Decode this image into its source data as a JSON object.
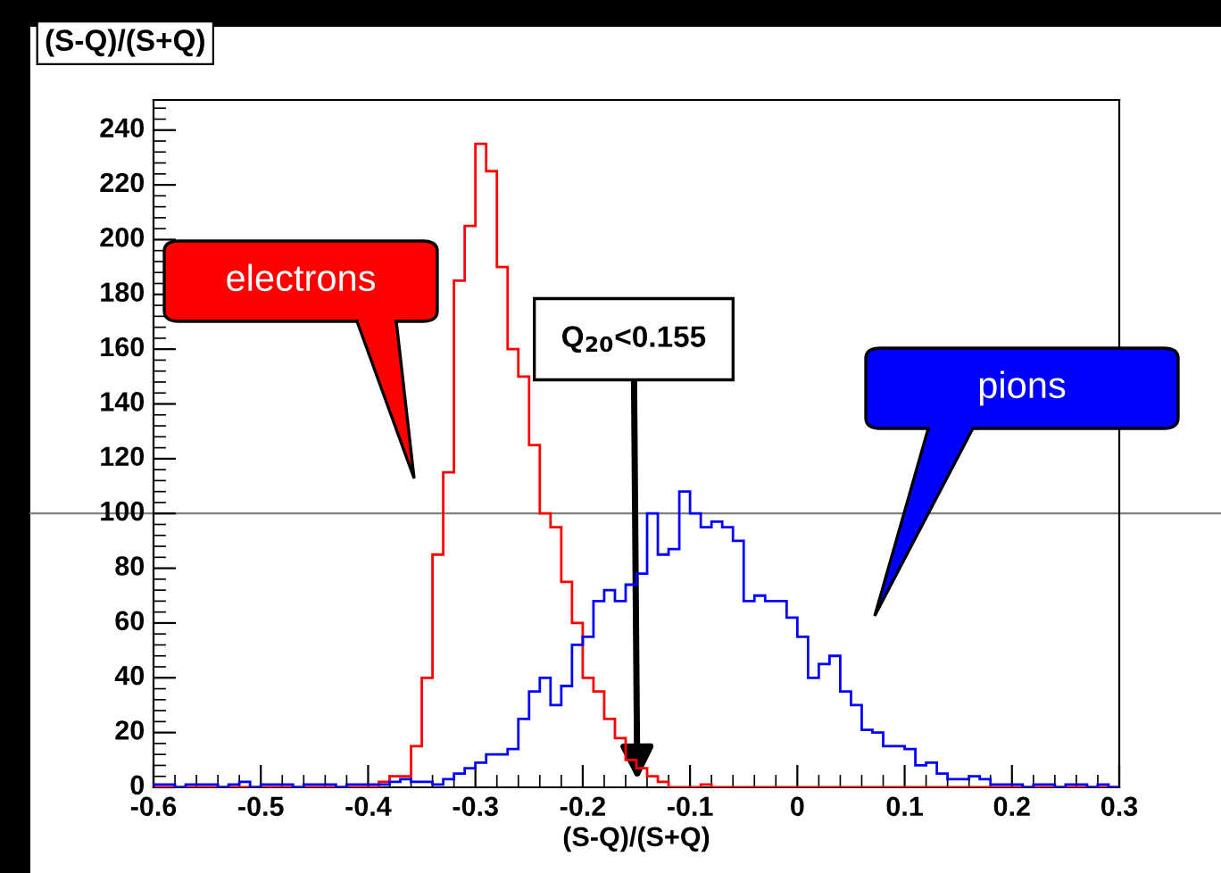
{
  "chart_data": {
    "type": "histogram",
    "title": "(S-Q)/(S+Q)",
    "xlabel": "(S-Q)/(S+Q)",
    "bins": [
      -0.6,
      -0.59,
      -0.58,
      -0.57,
      -0.56,
      -0.55,
      -0.54,
      -0.53,
      -0.52,
      -0.51,
      -0.5,
      -0.49,
      -0.48,
      -0.47,
      -0.46,
      -0.45,
      -0.44,
      -0.43,
      -0.42,
      -0.41,
      -0.4,
      -0.39,
      -0.38,
      -0.37,
      -0.36,
      -0.35,
      -0.34,
      -0.33,
      -0.32,
      -0.31,
      -0.3,
      -0.29,
      -0.28,
      -0.27,
      -0.26,
      -0.25,
      -0.24,
      -0.23,
      -0.22,
      -0.21,
      -0.2,
      -0.19,
      -0.18,
      -0.17,
      -0.16,
      -0.15,
      -0.14,
      -0.13,
      -0.12,
      -0.11,
      -0.1,
      -0.09,
      -0.08,
      -0.07,
      -0.06,
      -0.05,
      -0.04,
      -0.03,
      -0.02,
      -0.01,
      0,
      0.01,
      0.02,
      0.03,
      0.04,
      0.05,
      0.06,
      0.07,
      0.08,
      0.09,
      0.1,
      0.11,
      0.12,
      0.13,
      0.14,
      0.15,
      0.16,
      0.17,
      0.18,
      0.19,
      0.2,
      0.21,
      0.22,
      0.23,
      0.24,
      0.25,
      0.26,
      0.27,
      0.28,
      0.29,
      0.3
    ],
    "series": [
      {
        "name": "electrons",
        "color": "#ff0000",
        "values": [
          0,
          0,
          0,
          0,
          0,
          0,
          0,
          0,
          0,
          0,
          0,
          0,
          0,
          0,
          0,
          0,
          0,
          0,
          0,
          0,
          0,
          2,
          4,
          4,
          15,
          40,
          85,
          115,
          185,
          205,
          235,
          225,
          190,
          160,
          150,
          125,
          100,
          95,
          75,
          60,
          40,
          35,
          25,
          18,
          10,
          7,
          4,
          2,
          0,
          0,
          0,
          1,
          0,
          0,
          0,
          0,
          0,
          0,
          0,
          0,
          0,
          0,
          0,
          0,
          0,
          0,
          0,
          0,
          0,
          0,
          0,
          0,
          0,
          0,
          0,
          0,
          0,
          0,
          0,
          0,
          0,
          0,
          0,
          0,
          0,
          0,
          0,
          0,
          0,
          0
        ]
      },
      {
        "name": "pions",
        "color": "#0000ff",
        "values": [
          1,
          1,
          0,
          1,
          1,
          1,
          0,
          1,
          2,
          0,
          1,
          1,
          1,
          0,
          1,
          1,
          1,
          0,
          1,
          1,
          1,
          1,
          2,
          3,
          2,
          2,
          1,
          3,
          5,
          7,
          9,
          12,
          12,
          14,
          25,
          35,
          40,
          30,
          37,
          52,
          55,
          68,
          72,
          68,
          74,
          78,
          100,
          85,
          87,
          108,
          100,
          95,
          97,
          95,
          90,
          68,
          70,
          68,
          68,
          62,
          55,
          40,
          45,
          48,
          35,
          30,
          21,
          20,
          15,
          15,
          14,
          8,
          9,
          5,
          3,
          3,
          4,
          3,
          1,
          1,
          1,
          0,
          1,
          1,
          0,
          1,
          1,
          0,
          1,
          0
        ]
      }
    ],
    "annotations": [
      "Q$_{20}$<0.155"
    ],
    "ref_lines": [
      {
        "axis": "y",
        "value": 100,
        "color": "#808080"
      }
    ],
    "xlim": [
      -0.6,
      0.3
    ],
    "ylim": [
      0,
      251
    ],
    "xticks": [
      -0.6,
      -0.5,
      -0.4,
      -0.3,
      -0.2,
      -0.1,
      0,
      0.1,
      0.2,
      0.3
    ],
    "yticks": [
      0,
      20,
      40,
      60,
      80,
      100,
      120,
      140,
      160,
      180,
      200,
      220,
      240
    ],
    "grid": false,
    "legend": false
  }
}
